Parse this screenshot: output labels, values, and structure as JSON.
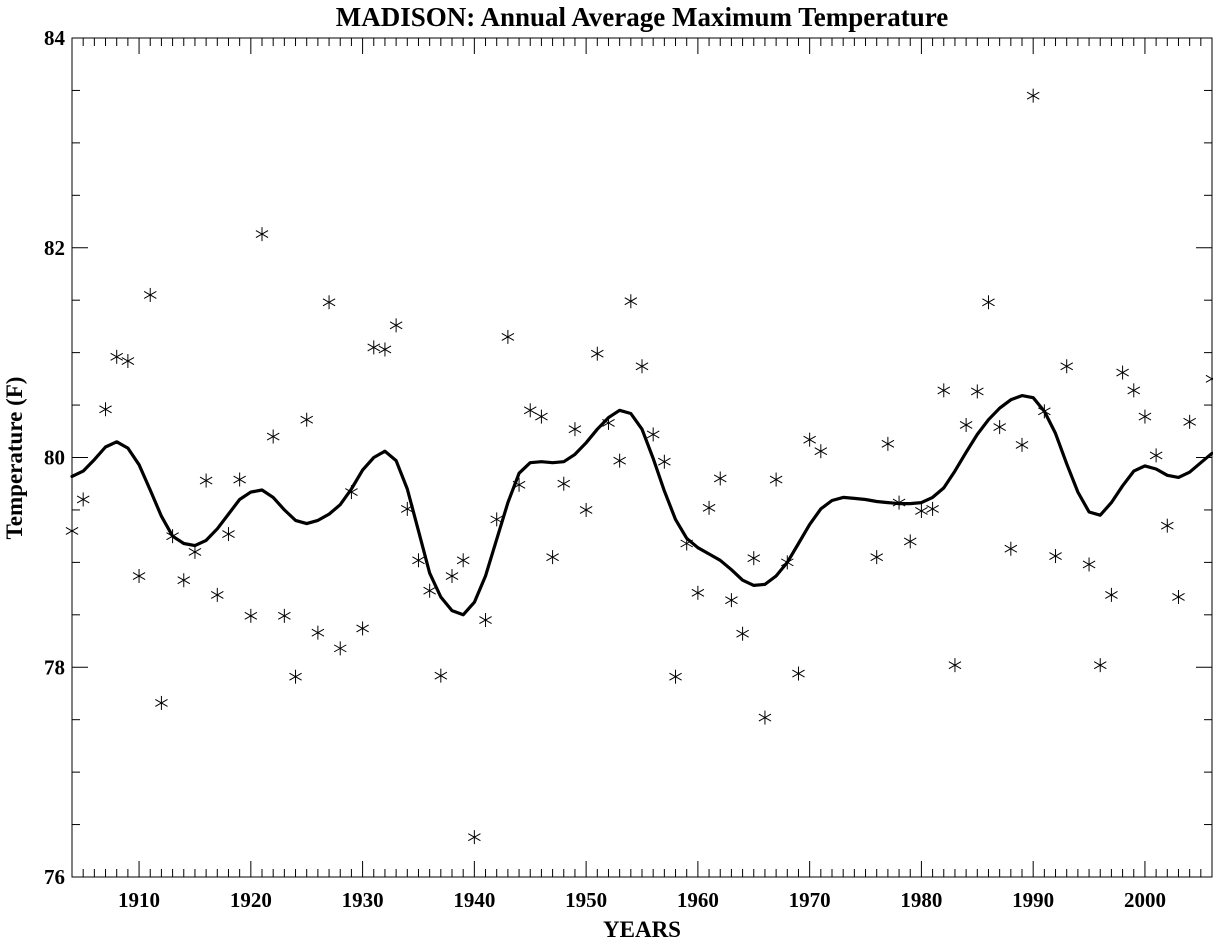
{
  "chart_data": {
    "type": "scatter",
    "title": "MADISON: Annual Average Maximum Temperature",
    "xlabel": "YEARS",
    "ylabel": "Temperature (F)",
    "xlim": [
      1904,
      2006
    ],
    "ylim": [
      76,
      84
    ],
    "x_ticks": [
      1910,
      1920,
      1930,
      1940,
      1950,
      1960,
      1970,
      1980,
      1990,
      2000
    ],
    "y_ticks": [
      76,
      78,
      80,
      82,
      84
    ],
    "grid": false,
    "legend": "none",
    "series": [
      {
        "marker": "asterisk",
        "points": [
          [
            1904,
            79.3
          ],
          [
            1905,
            79.6
          ],
          [
            1907,
            80.46
          ],
          [
            1908,
            80.96
          ],
          [
            1909,
            80.92
          ],
          [
            1910,
            78.87
          ],
          [
            1911,
            81.55
          ],
          [
            1912,
            77.66
          ],
          [
            1913,
            79.25
          ],
          [
            1914,
            78.83
          ],
          [
            1915,
            79.1
          ],
          [
            1916,
            79.78
          ],
          [
            1917,
            78.69
          ],
          [
            1918,
            79.27
          ],
          [
            1919,
            79.79
          ],
          [
            1920,
            78.49
          ],
          [
            1921,
            82.13
          ],
          [
            1922,
            80.2
          ],
          [
            1923,
            78.49
          ],
          [
            1924,
            77.91
          ],
          [
            1925,
            80.36
          ],
          [
            1926,
            78.33
          ],
          [
            1927,
            81.48
          ],
          [
            1928,
            78.18
          ],
          [
            1929,
            79.67
          ],
          [
            1930,
            78.37
          ],
          [
            1931,
            81.05
          ],
          [
            1932,
            81.03
          ],
          [
            1933,
            81.26
          ],
          [
            1934,
            79.51
          ],
          [
            1935,
            79.02
          ],
          [
            1936,
            78.73
          ],
          [
            1937,
            77.92
          ],
          [
            1938,
            78.87
          ],
          [
            1939,
            79.02
          ],
          [
            1940,
            76.38
          ],
          [
            1941,
            78.45
          ],
          [
            1942,
            79.41
          ],
          [
            1943,
            81.15
          ],
          [
            1944,
            79.74
          ],
          [
            1945,
            80.45
          ],
          [
            1946,
            80.39
          ],
          [
            1947,
            79.05
          ],
          [
            1948,
            79.75
          ],
          [
            1949,
            80.27
          ],
          [
            1950,
            79.5
          ],
          [
            1951,
            80.99
          ],
          [
            1952,
            80.33
          ],
          [
            1953,
            79.97
          ],
          [
            1954,
            81.49
          ],
          [
            1955,
            80.87
          ],
          [
            1956,
            80.22
          ],
          [
            1957,
            79.96
          ],
          [
            1958,
            77.91
          ],
          [
            1959,
            79.18
          ],
          [
            1960,
            78.71
          ],
          [
            1961,
            79.52
          ],
          [
            1962,
            79.8
          ],
          [
            1963,
            78.64
          ],
          [
            1964,
            78.32
          ],
          [
            1965,
            79.04
          ],
          [
            1966,
            77.52
          ],
          [
            1967,
            79.79
          ],
          [
            1968,
            79.0
          ],
          [
            1969,
            77.94
          ],
          [
            1970,
            80.17
          ],
          [
            1971,
            80.06
          ],
          [
            1976,
            79.05
          ],
          [
            1977,
            80.13
          ],
          [
            1978,
            79.57
          ],
          [
            1979,
            79.2
          ],
          [
            1980,
            79.49
          ],
          [
            1981,
            79.51
          ],
          [
            1982,
            80.64
          ],
          [
            1983,
            78.02
          ],
          [
            1984,
            80.31
          ],
          [
            1985,
            80.63
          ],
          [
            1986,
            81.48
          ],
          [
            1987,
            80.29
          ],
          [
            1988,
            79.13
          ],
          [
            1989,
            80.12
          ],
          [
            1990,
            83.45
          ],
          [
            1991,
            80.44
          ],
          [
            1992,
            79.06
          ],
          [
            1993,
            80.87
          ],
          [
            1995,
            78.98
          ],
          [
            1996,
            78.02
          ],
          [
            1997,
            78.69
          ],
          [
            1998,
            80.81
          ],
          [
            1999,
            80.64
          ],
          [
            2000,
            80.39
          ],
          [
            2001,
            80.02
          ],
          [
            2002,
            79.35
          ],
          [
            2003,
            78.67
          ],
          [
            2004,
            80.34
          ],
          [
            2006,
            80.75
          ]
        ]
      },
      {
        "line": "smoothed",
        "points": [
          [
            1904,
            79.82
          ],
          [
            1905,
            79.87
          ],
          [
            1906,
            79.98
          ],
          [
            1907,
            80.1
          ],
          [
            1908,
            80.15
          ],
          [
            1909,
            80.09
          ],
          [
            1910,
            79.93
          ],
          [
            1911,
            79.69
          ],
          [
            1912,
            79.44
          ],
          [
            1913,
            79.25
          ],
          [
            1914,
            79.18
          ],
          [
            1915,
            79.16
          ],
          [
            1916,
            79.21
          ],
          [
            1917,
            79.32
          ],
          [
            1918,
            79.46
          ],
          [
            1919,
            79.6
          ],
          [
            1920,
            79.67
          ],
          [
            1921,
            79.69
          ],
          [
            1922,
            79.62
          ],
          [
            1923,
            79.5
          ],
          [
            1924,
            79.4
          ],
          [
            1925,
            79.37
          ],
          [
            1926,
            79.4
          ],
          [
            1927,
            79.46
          ],
          [
            1928,
            79.55
          ],
          [
            1929,
            79.7
          ],
          [
            1930,
            79.88
          ],
          [
            1931,
            80.0
          ],
          [
            1932,
            80.06
          ],
          [
            1933,
            79.97
          ],
          [
            1934,
            79.7
          ],
          [
            1935,
            79.3
          ],
          [
            1936,
            78.9
          ],
          [
            1937,
            78.67
          ],
          [
            1938,
            78.54
          ],
          [
            1939,
            78.5
          ],
          [
            1940,
            78.62
          ],
          [
            1941,
            78.87
          ],
          [
            1942,
            79.22
          ],
          [
            1943,
            79.57
          ],
          [
            1944,
            79.85
          ],
          [
            1945,
            79.95
          ],
          [
            1946,
            79.96
          ],
          [
            1947,
            79.95
          ],
          [
            1948,
            79.96
          ],
          [
            1949,
            80.03
          ],
          [
            1950,
            80.14
          ],
          [
            1951,
            80.27
          ],
          [
            1952,
            80.38
          ],
          [
            1953,
            80.45
          ],
          [
            1954,
            80.42
          ],
          [
            1955,
            80.27
          ],
          [
            1956,
            79.99
          ],
          [
            1957,
            79.68
          ],
          [
            1958,
            79.41
          ],
          [
            1959,
            79.23
          ],
          [
            1960,
            79.14
          ],
          [
            1961,
            79.08
          ],
          [
            1962,
            79.02
          ],
          [
            1963,
            78.93
          ],
          [
            1964,
            78.83
          ],
          [
            1965,
            78.78
          ],
          [
            1966,
            78.79
          ],
          [
            1967,
            78.87
          ],
          [
            1968,
            79.0
          ],
          [
            1969,
            79.18
          ],
          [
            1970,
            79.36
          ],
          [
            1971,
            79.51
          ],
          [
            1972,
            79.59
          ],
          [
            1973,
            79.62
          ],
          [
            1974,
            79.61
          ],
          [
            1975,
            79.6
          ],
          [
            1976,
            79.58
          ],
          [
            1977,
            79.57
          ],
          [
            1978,
            79.56
          ],
          [
            1979,
            79.56
          ],
          [
            1980,
            79.57
          ],
          [
            1981,
            79.62
          ],
          [
            1982,
            79.71
          ],
          [
            1983,
            79.87
          ],
          [
            1984,
            80.05
          ],
          [
            1985,
            80.22
          ],
          [
            1986,
            80.36
          ],
          [
            1987,
            80.47
          ],
          [
            1988,
            80.55
          ],
          [
            1989,
            80.59
          ],
          [
            1990,
            80.57
          ],
          [
            1991,
            80.44
          ],
          [
            1992,
            80.23
          ],
          [
            1993,
            79.94
          ],
          [
            1994,
            79.67
          ],
          [
            1995,
            79.48
          ],
          [
            1996,
            79.45
          ],
          [
            1997,
            79.57
          ],
          [
            1998,
            79.73
          ],
          [
            1999,
            79.87
          ],
          [
            2000,
            79.92
          ],
          [
            2001,
            79.89
          ],
          [
            2002,
            79.83
          ],
          [
            2003,
            79.81
          ],
          [
            2004,
            79.86
          ],
          [
            2005,
            79.95
          ],
          [
            2006,
            80.04
          ]
        ]
      }
    ]
  }
}
